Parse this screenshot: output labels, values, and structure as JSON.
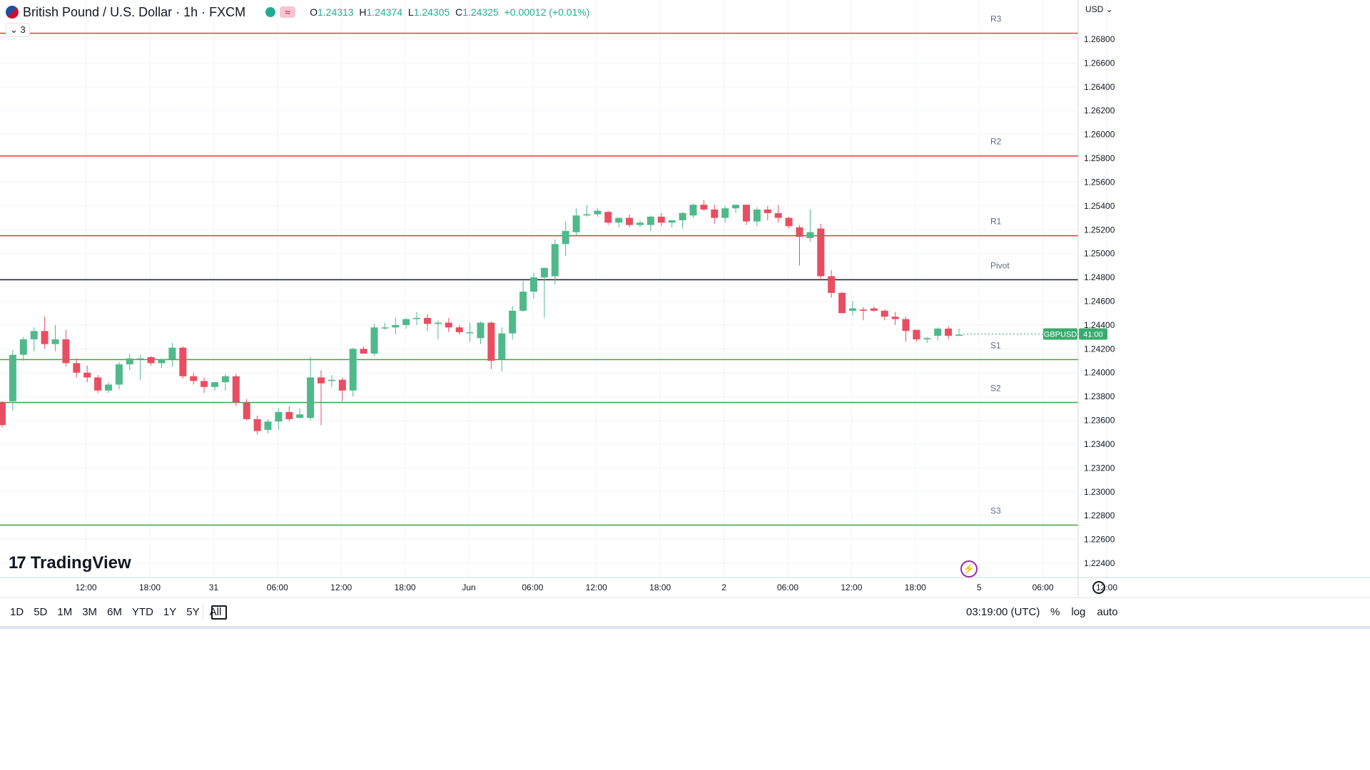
{
  "header": {
    "title": "British Pound / U.S. Dollar · 1h · FXCM",
    "ohlc": {
      "o_label": "O",
      "o": "1.24313",
      "h_label": "H",
      "h": "1.24374",
      "l_label": "L",
      "l": "1.24305",
      "c_label": "C",
      "c": "1.24325",
      "chg": "+0.00012 (+0.01%)"
    },
    "indicators_count": "3",
    "currency": "USD"
  },
  "logo": "TradingView",
  "bottom": {
    "ranges": [
      "1D",
      "5D",
      "1M",
      "3M",
      "6M",
      "YTD",
      "1Y",
      "5Y",
      "All"
    ],
    "clock": "03:19:00 (UTC)",
    "options": [
      "%",
      "log",
      "auto"
    ]
  },
  "colors": {
    "up": "#4fb98b",
    "down": "#e84e61",
    "resistance": "#e53935",
    "support": "#43a047",
    "pivot": "#131722",
    "price_tag": "#3aab6e"
  },
  "chart_data": {
    "type": "candlestick",
    "symbol": "GBPUSD",
    "ylim": [
      1.223,
      1.27
    ],
    "y_ticks": [
      "1.26800",
      "1.26600",
      "1.26400",
      "1.26200",
      "1.26000",
      "1.25800",
      "1.25600",
      "1.25400",
      "1.25200",
      "1.25000",
      "1.24800",
      "1.24600",
      "1.24400",
      "1.24200",
      "1.24000",
      "1.23800",
      "1.23600",
      "1.23400",
      "1.23200",
      "1.23000",
      "1.22800",
      "1.22600",
      "1.22400"
    ],
    "x_ticks": [
      {
        "label": "12:00",
        "i": 4
      },
      {
        "label": "18:00",
        "i": 10
      },
      {
        "label": "31",
        "i": 16
      },
      {
        "label": "06:00",
        "i": 22
      },
      {
        "label": "12:00",
        "i": 28
      },
      {
        "label": "18:00",
        "i": 34
      },
      {
        "label": "Jun",
        "i": 40
      },
      {
        "label": "06:00",
        "i": 46
      },
      {
        "label": "12:00",
        "i": 52
      },
      {
        "label": "18:00",
        "i": 58
      },
      {
        "label": "2",
        "i": 64
      },
      {
        "label": "06:00",
        "i": 70
      },
      {
        "label": "12:00",
        "i": 76
      },
      {
        "label": "18:00",
        "i": 82
      },
      {
        "label": "5",
        "i": 88
      },
      {
        "label": "06:00",
        "i": 94
      },
      {
        "label": "12:00",
        "i": 100
      }
    ],
    "levels": [
      {
        "name": "R3",
        "value": 1.2685,
        "kind": "resistance"
      },
      {
        "name": "R2",
        "value": 1.2582,
        "kind": "resistance"
      },
      {
        "name": "R1",
        "value": 1.2515,
        "kind": "resistance"
      },
      {
        "name": "Pivot",
        "value": 1.2478,
        "kind": "pivot"
      },
      {
        "name": "S1",
        "value": 1.2411,
        "kind": "support"
      },
      {
        "name": "S2",
        "value": 1.2375,
        "kind": "support"
      },
      {
        "name": "S3",
        "value": 1.2272,
        "kind": "support"
      }
    ],
    "price_tag": {
      "symbol": "GBPUSD",
      "time": "41:00",
      "value": 1.24325
    },
    "candles": [
      [
        1.2375,
        1.2376,
        1.2354,
        1.2356
      ],
      [
        1.2376,
        1.2419,
        1.2368,
        1.2415
      ],
      [
        1.2415,
        1.243,
        1.241,
        1.2428
      ],
      [
        1.2428,
        1.2438,
        1.2418,
        1.2435
      ],
      [
        1.2435,
        1.2447,
        1.242,
        1.2424
      ],
      [
        1.2424,
        1.244,
        1.2418,
        1.2428
      ],
      [
        1.2428,
        1.2436,
        1.2405,
        1.2408
      ],
      [
        1.2408,
        1.2412,
        1.2396,
        1.24
      ],
      [
        1.24,
        1.2406,
        1.2392,
        1.2396
      ],
      [
        1.2396,
        1.2398,
        1.2383,
        1.2385
      ],
      [
        1.2385,
        1.2392,
        1.2383,
        1.239
      ],
      [
        1.239,
        1.2409,
        1.2386,
        1.2407
      ],
      [
        1.2407,
        1.2416,
        1.2402,
        1.2412
      ],
      [
        1.2412,
        1.2415,
        1.2394,
        1.2412
      ],
      [
        1.2413,
        1.2414,
        1.2406,
        1.2408
      ],
      [
        1.2408,
        1.2412,
        1.2404,
        1.2411
      ],
      [
        1.2411,
        1.2425,
        1.2405,
        1.2421
      ],
      [
        1.2421,
        1.2422,
        1.2395,
        1.2397
      ],
      [
        1.2397,
        1.24,
        1.239,
        1.2393
      ],
      [
        1.2393,
        1.2396,
        1.2383,
        1.2388
      ],
      [
        1.2388,
        1.2391,
        1.2385,
        1.2392
      ],
      [
        1.2392,
        1.2399,
        1.2385,
        1.2397
      ],
      [
        1.2397,
        1.2399,
        1.2372,
        1.2375
      ],
      [
        1.2375,
        1.2378,
        1.236,
        1.2361
      ],
      [
        1.2361,
        1.2364,
        1.2348,
        1.2351
      ],
      [
        1.2352,
        1.2361,
        1.2349,
        1.2359
      ],
      [
        1.2359,
        1.237,
        1.2352,
        1.2367
      ],
      [
        1.2367,
        1.2372,
        1.2359,
        1.2361
      ],
      [
        1.2362,
        1.237,
        1.2362,
        1.2365
      ],
      [
        1.2362,
        1.2413,
        1.236,
        1.2396
      ],
      [
        1.2396,
        1.2402,
        1.2356,
        1.2391
      ],
      [
        1.2393,
        1.2398,
        1.2388,
        1.2394
      ],
      [
        1.2394,
        1.2396,
        1.2376,
        1.2385
      ],
      [
        1.2385,
        1.2421,
        1.238,
        1.242
      ],
      [
        1.242,
        1.2422,
        1.2417,
        1.2416
      ],
      [
        1.2416,
        1.2441,
        1.2414,
        1.2438
      ],
      [
        1.2438,
        1.2442,
        1.2436,
        1.2438
      ],
      [
        1.2438,
        1.2446,
        1.2432,
        1.244
      ],
      [
        1.244,
        1.2446,
        1.2437,
        1.2445
      ],
      [
        1.2445,
        1.2451,
        1.244,
        1.2446
      ],
      [
        1.2446,
        1.2449,
        1.2435,
        1.2441
      ],
      [
        1.2441,
        1.2444,
        1.2428,
        1.2442
      ],
      [
        1.2442,
        1.2446,
        1.2434,
        1.2438
      ],
      [
        1.2438,
        1.244,
        1.2432,
        1.2434
      ],
      [
        1.2434,
        1.2442,
        1.2426,
        1.2434
      ],
      [
        1.2429,
        1.2443,
        1.2424,
        1.2442
      ],
      [
        1.2442,
        1.2443,
        1.2403,
        1.241
      ],
      [
        1.2411,
        1.2438,
        1.2401,
        1.2433
      ],
      [
        1.2433,
        1.2456,
        1.2428,
        1.2452
      ],
      [
        1.2452,
        1.2477,
        1.2451,
        1.2468
      ],
      [
        1.2468,
        1.2484,
        1.2462,
        1.248
      ],
      [
        1.248,
        1.2488,
        1.2446,
        1.2488
      ],
      [
        1.2481,
        1.2512,
        1.2474,
        1.2508
      ],
      [
        1.2508,
        1.2527,
        1.2498,
        1.2519
      ],
      [
        1.2518,
        1.2538,
        1.2515,
        1.2532
      ],
      [
        1.2532,
        1.2541,
        1.2531,
        1.2533
      ],
      [
        1.2533,
        1.2538,
        1.2531,
        1.2536
      ],
      [
        1.2535,
        1.2536,
        1.2524,
        1.2526
      ],
      [
        1.2526,
        1.253,
        1.2522,
        1.253
      ],
      [
        1.253,
        1.2533,
        1.2522,
        1.2524
      ],
      [
        1.2524,
        1.2528,
        1.2522,
        1.2526
      ],
      [
        1.2524,
        1.2532,
        1.2519,
        1.2531
      ],
      [
        1.2531,
        1.2534,
        1.2523,
        1.2526
      ],
      [
        1.2526,
        1.2528,
        1.2522,
        1.2528
      ],
      [
        1.2528,
        1.2535,
        1.2521,
        1.2534
      ],
      [
        1.2532,
        1.2542,
        1.253,
        1.2541
      ],
      [
        1.2541,
        1.2545,
        1.2536,
        1.2537
      ],
      [
        1.2537,
        1.2541,
        1.2525,
        1.253
      ],
      [
        1.253,
        1.254,
        1.2526,
        1.2538
      ],
      [
        1.2538,
        1.2541,
        1.2534,
        1.2541
      ],
      [
        1.2541,
        1.2541,
        1.2524,
        1.2527
      ],
      [
        1.2527,
        1.2539,
        1.2523,
        1.2537
      ],
      [
        1.2537,
        1.254,
        1.2528,
        1.2534
      ],
      [
        1.2534,
        1.2541,
        1.2526,
        1.253
      ],
      [
        1.253,
        1.2531,
        1.2521,
        1.2523
      ],
      [
        1.2522,
        1.2524,
        1.249,
        1.2514
      ],
      [
        1.2513,
        1.2537,
        1.251,
        1.2518
      ],
      [
        1.2521,
        1.2525,
        1.2479,
        1.2481
      ],
      [
        1.2481,
        1.2486,
        1.2463,
        1.2467
      ],
      [
        1.2467,
        1.2468,
        1.245,
        1.245
      ],
      [
        1.2452,
        1.246,
        1.2448,
        1.2454
      ],
      [
        1.2453,
        1.2455,
        1.2444,
        1.2452
      ],
      [
        1.2454,
        1.2456,
        1.2451,
        1.2452
      ],
      [
        1.2452,
        1.2453,
        1.2444,
        1.2447
      ],
      [
        1.2447,
        1.2451,
        1.244,
        1.2445
      ],
      [
        1.2445,
        1.2447,
        1.2426,
        1.2435
      ],
      [
        1.2436,
        1.2436,
        1.2426,
        1.2428
      ],
      [
        1.2428,
        1.243,
        1.2425,
        1.2429
      ],
      [
        1.2431,
        1.2438,
        1.2427,
        1.2437
      ],
      [
        1.2437,
        1.2439,
        1.2428,
        1.2431
      ],
      [
        1.2431,
        1.2437,
        1.2431,
        1.2432
      ]
    ]
  }
}
